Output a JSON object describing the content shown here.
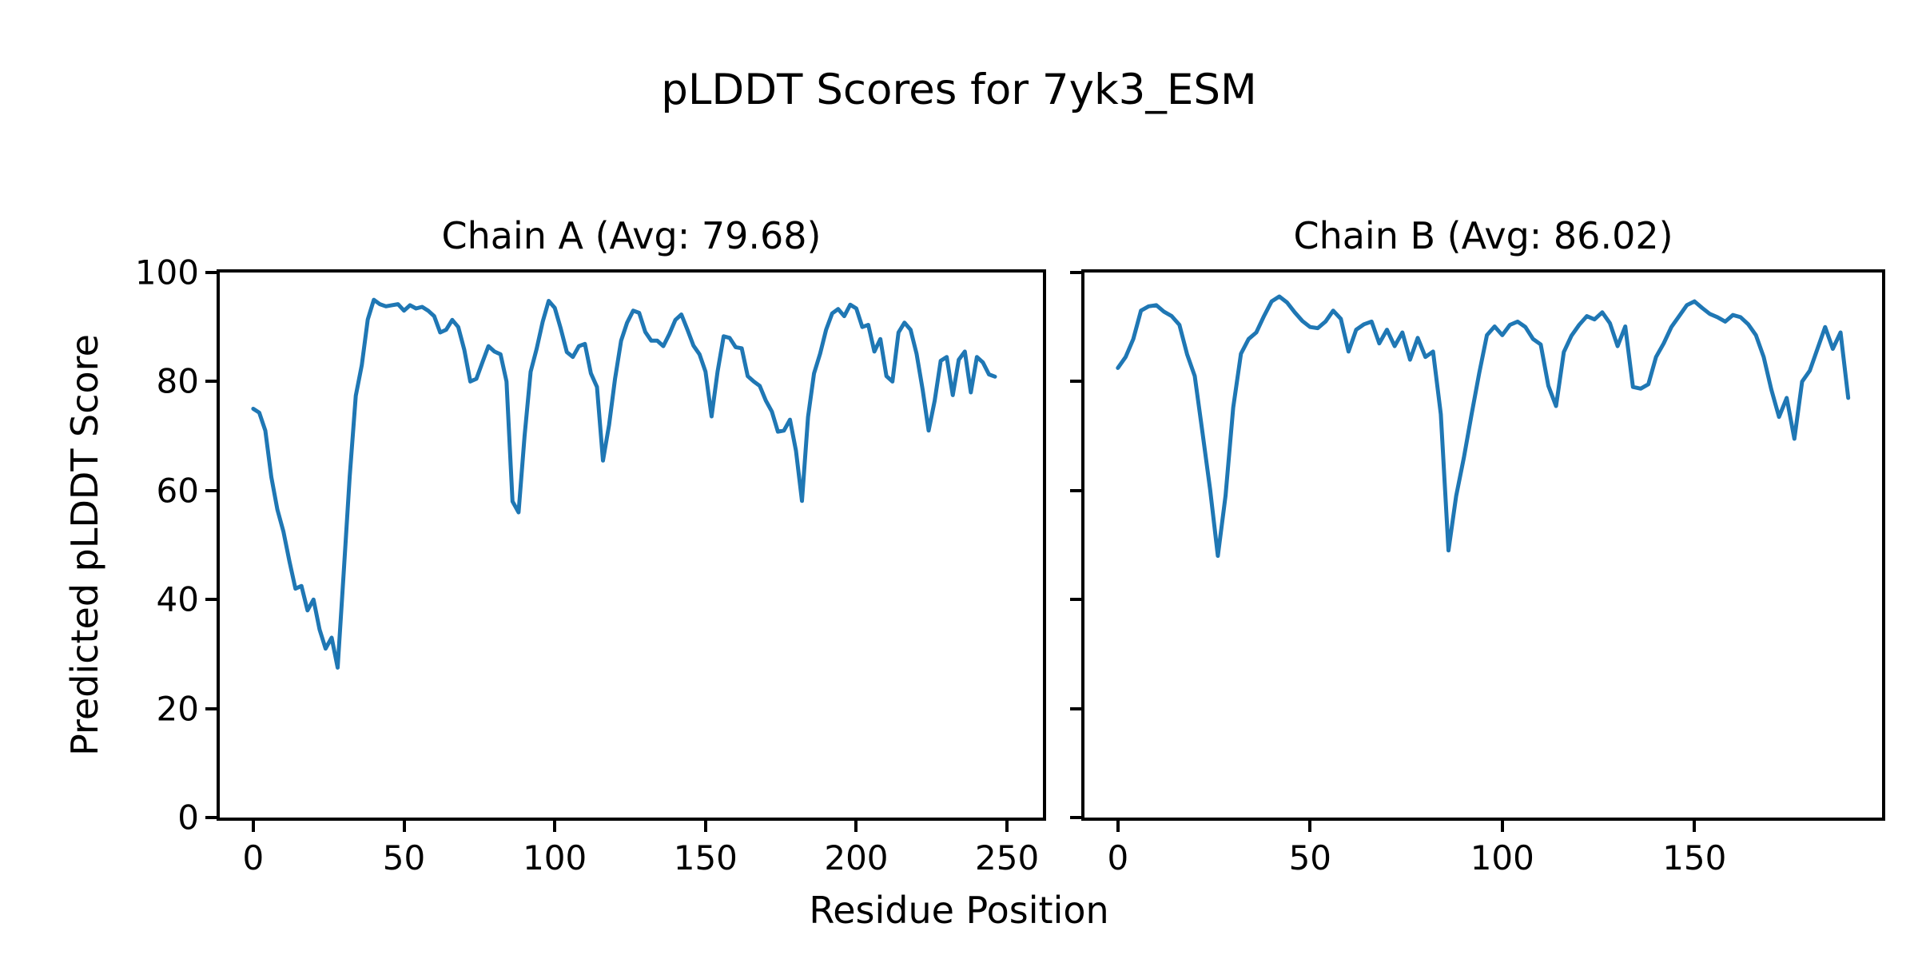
{
  "figure": {
    "title": "pLDDT Scores for 7yk3_ESM",
    "xlabel": "Residue Position",
    "ylabel": "Predicted pLDDT Score",
    "background": "#ffffff",
    "text_color": "#000000"
  },
  "chart_data": [
    {
      "type": "line",
      "title": "Chain A (Avg: 79.68)",
      "chain": "A",
      "average_plddt": 79.68,
      "line_color": "#1f77b4",
      "xlim": [
        -11.1,
        261.9
      ],
      "ylim": [
        0,
        100
      ],
      "xticks": [
        0,
        50,
        100,
        150,
        200,
        250
      ],
      "yticks": [
        0,
        20,
        40,
        60,
        80,
        100
      ],
      "show_ytick_labels": true,
      "grid": false,
      "x_start": 0,
      "x_step": 2,
      "values": [
        75.0,
        74.3,
        71.0,
        62.5,
        56.5,
        52.5,
        47.0,
        42.0,
        42.5,
        38.0,
        40.0,
        34.5,
        31.0,
        33.0,
        27.5,
        45.0,
        62.6,
        77.4,
        83.0,
        91.4,
        95.0,
        94.2,
        93.8,
        94.0,
        94.2,
        93.0,
        94.0,
        93.4,
        93.7,
        93.0,
        92.0,
        89.0,
        89.5,
        91.3,
        90.0,
        85.8,
        80.0,
        80.5,
        83.5,
        86.5,
        85.5,
        85.0,
        80.0,
        58.0,
        56.0,
        70.0,
        81.8,
        86.0,
        91.0,
        94.8,
        93.5,
        89.7,
        85.4,
        84.5,
        86.5,
        86.9,
        81.5,
        79.0,
        65.5,
        72.0,
        80.5,
        87.5,
        90.8,
        93.0,
        92.6,
        89.1,
        87.5,
        87.5,
        86.5,
        88.7,
        91.3,
        92.3,
        89.5,
        86.6,
        85.0,
        81.8,
        73.6,
        81.8,
        88.3,
        88.0,
        86.3,
        86.1,
        81.0,
        80.0,
        79.2,
        76.5,
        74.5,
        70.8,
        71.0,
        73.0,
        67.3,
        58.1,
        73.5,
        81.5,
        85.1,
        89.5,
        92.5,
        93.3,
        92.0,
        94.1,
        93.4,
        90.0,
        90.4,
        85.5,
        87.8,
        81.0,
        80.0,
        89.0,
        90.8,
        89.5,
        85.1,
        78.5,
        71.0,
        76.5,
        83.8,
        84.5,
        77.5,
        84.0,
        85.5,
        78.0,
        84.5,
        83.5,
        81.3,
        80.9
      ]
    },
    {
      "type": "line",
      "title": "Chain B (Avg: 86.02)",
      "chain": "B",
      "average_plddt": 86.02,
      "line_color": "#1f77b4",
      "xlim": [
        -8.7,
        198.8
      ],
      "ylim": [
        0,
        100
      ],
      "xticks": [
        0,
        50,
        100,
        150
      ],
      "yticks": [
        0,
        20,
        40,
        60,
        80,
        100
      ],
      "show_ytick_labels": false,
      "grid": false,
      "x_start": 0,
      "x_step": 2,
      "values": [
        82.5,
        84.5,
        87.8,
        93.0,
        93.8,
        94.0,
        92.8,
        92.0,
        90.4,
        85.0,
        81.0,
        70.6,
        60.1,
        48.0,
        59.0,
        75.2,
        85.1,
        87.8,
        89.0,
        92.0,
        94.7,
        95.6,
        94.5,
        92.7,
        91.1,
        90.0,
        89.8,
        91.0,
        93.0,
        91.5,
        85.5,
        89.5,
        90.5,
        91.0,
        87.0,
        89.5,
        86.5,
        89.0,
        84.0,
        88.0,
        84.5,
        85.5,
        74.0,
        49.0,
        59.0,
        66.0,
        73.9,
        81.5,
        88.5,
        90.1,
        88.5,
        90.4,
        91.0,
        90.0,
        87.8,
        86.8,
        79.2,
        75.5,
        85.4,
        88.4,
        90.4,
        92.0,
        91.4,
        92.7,
        90.7,
        86.5,
        90.1,
        79.0,
        78.7,
        79.5,
        84.5,
        87.0,
        90.0,
        92.0,
        94.0,
        94.7,
        93.5,
        92.4,
        91.8,
        91.0,
        92.2,
        91.8,
        90.5,
        88.5,
        84.5,
        78.5,
        73.5,
        77.0,
        69.5,
        80.0,
        82.0,
        86.0,
        90.0,
        86.0,
        89.0,
        77.0
      ]
    }
  ]
}
